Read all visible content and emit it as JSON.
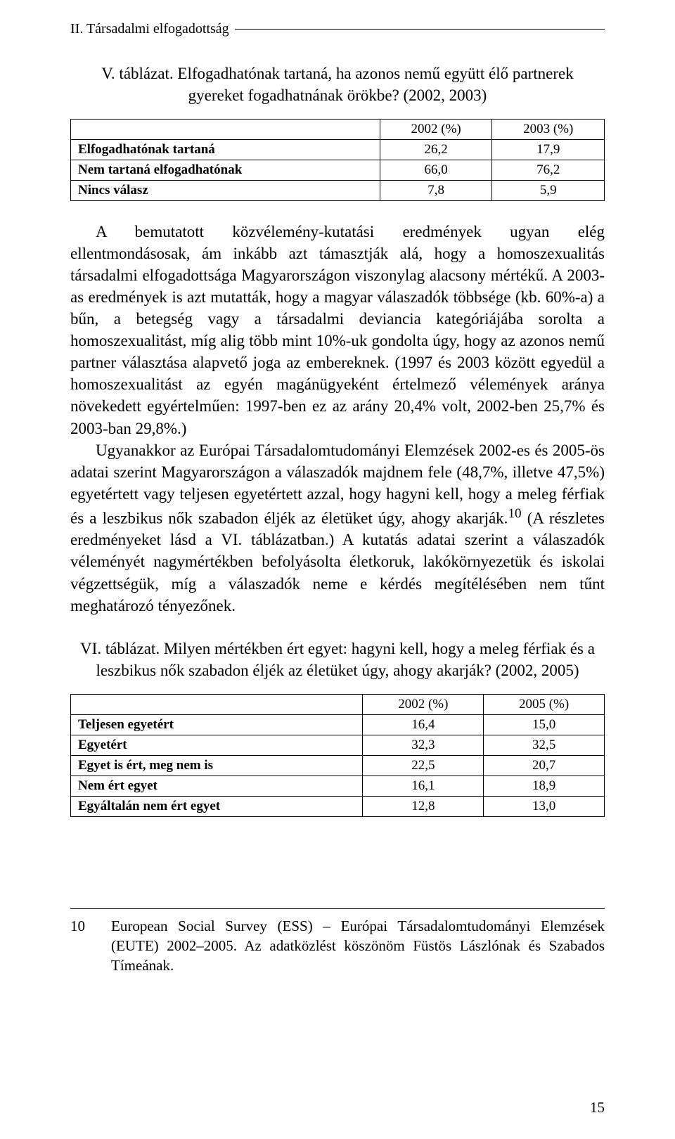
{
  "header": "II. Társadalmi elfogadottság",
  "caption1": "V. táblázat. Elfogadhatónak tartaná, ha azonos nemű együtt élő partnerek gyereket fogadhatnának örökbe? (2002, 2003)",
  "table1": {
    "headers": [
      "",
      "2002 (%)",
      "2003 (%)"
    ],
    "rows": [
      [
        "Elfogadhatónak tartaná",
        "26,2",
        "17,9"
      ],
      [
        "Nem tartaná elfogadhatónak",
        "66,0",
        "76,2"
      ],
      [
        "Nincs válasz",
        "7,8",
        "5,9"
      ]
    ]
  },
  "para1": "A bemutatott közvélemény-kutatási eredmények ugyan elég ellentmondásosak, ám inkább azt támasztják alá, hogy a homoszexualitás társadalmi elfogadottsága Magyarországon viszonylag alacsony mértékű. A 2003-as eredmények is azt mutatták, hogy a magyar válaszadók többsége (kb. 60%-a) a bűn, a betegség vagy a társadalmi deviancia kategóriájába sorolta a homoszexualitást, míg alig több mint 10%-uk gondolta úgy, hogy az azonos nemű partner választása alapvető joga az embereknek. (1997 és 2003 között egyedül a homoszexualitást az egyén magánügyeként értelmező vélemények aránya növekedett egyértelműen: 1997-ben ez az arány 20,4% volt, 2002-ben 25,7% és 2003-ban 29,8%.)",
  "para2a": "Ugyanakkor az Európai Társadalomtudományi Elemzések 2002-es és 2005-ös adatai szerint Magyarországon a válaszadók majdnem fele (48,7%, illetve 47,5%) egyetértett vagy teljesen egyetértett azzal, hogy hagyni kell, hogy a meleg férfiak és a leszbikus nők szabadon éljék az életüket úgy, ahogy akarják.",
  "fnref": "10",
  "para2b": " (A részletes eredményeket lásd a VI. táblázatban.) A kutatás adatai szerint a válaszadók véleményét nagymértékben befolyásolta életkoruk, lakókörnyezetük és iskolai végzettségük, míg a válaszadók neme e kérdés megítélésében nem tűnt meghatározó tényezőnek.",
  "caption2": "VI. táblázat. Milyen mértékben ért egyet: hagyni kell, hogy a meleg férfiak és a leszbikus nők szabadon éljék az életüket úgy, ahogy akarják? (2002, 2005)",
  "table2": {
    "headers": [
      "",
      "2002 (%)",
      "2005 (%)"
    ],
    "rows": [
      [
        "Teljesen egyetért",
        "16,4",
        "15,0"
      ],
      [
        "Egyetért",
        "32,3",
        "32,5"
      ],
      [
        "Egyet is ért, meg nem is",
        "22,5",
        "20,7"
      ],
      [
        "Nem ért egyet",
        "16,1",
        "18,9"
      ],
      [
        "Egyáltalán nem ért egyet",
        "12,8",
        "13,0"
      ]
    ]
  },
  "footnote": {
    "num": "10",
    "text": "European Social Survey (ESS) – Európai Társadalomtudományi Elemzések (EUTE) 2002–2005. Az adatközlést köszönöm Füstös Lászlónak és Szabados Tímeának."
  },
  "pageNum": "15"
}
